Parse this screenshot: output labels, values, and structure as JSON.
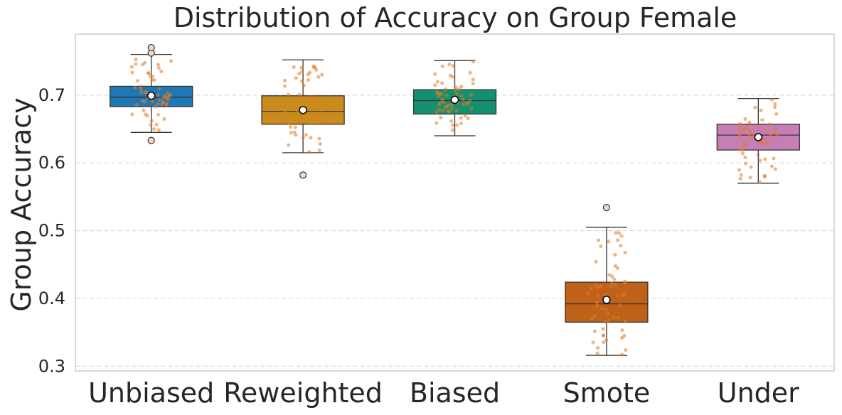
{
  "chart_data": {
    "type": "box",
    "title": "Distribution of Accuracy on Group Female",
    "xlabel": "",
    "ylabel": "Group Accuracy",
    "ylim": [
      0.293,
      0.79
    ],
    "yticks": [
      0.3,
      0.4,
      0.5,
      0.6,
      0.7
    ],
    "ytick_labels": [
      "0.3",
      "0.4",
      "0.5",
      "0.6",
      "0.7"
    ],
    "grid": true,
    "jitter_color": "#e07b28",
    "categories": [
      "Unbiased",
      "Reweighted",
      "Biased",
      "Smote",
      "Under"
    ],
    "series": [
      {
        "name": "Unbiased",
        "color": "#1f78b4",
        "whislo": 0.645,
        "q1": 0.683,
        "median": 0.697,
        "q3": 0.713,
        "whishi": 0.76,
        "mean": 0.699,
        "fliers": [
          0.633,
          0.762,
          0.77
        ]
      },
      {
        "name": "Reweighted",
        "color": "#c98c1c",
        "whislo": 0.615,
        "q1": 0.657,
        "median": 0.676,
        "q3": 0.699,
        "whishi": 0.752,
        "mean": 0.678,
        "fliers": [
          0.582
        ]
      },
      {
        "name": "Biased",
        "color": "#14906e",
        "whislo": 0.64,
        "q1": 0.672,
        "median": 0.692,
        "q3": 0.708,
        "whishi": 0.751,
        "mean": 0.693,
        "fliers": []
      },
      {
        "name": "Smote",
        "color": "#c0611a",
        "whislo": 0.316,
        "q1": 0.365,
        "median": 0.392,
        "q3": 0.424,
        "whishi": 0.505,
        "mean": 0.398,
        "fliers": [
          0.534
        ]
      },
      {
        "name": "Under",
        "color": "#c57fb6",
        "whislo": 0.57,
        "q1": 0.619,
        "median": 0.641,
        "q3": 0.657,
        "whishi": 0.695,
        "mean": 0.638,
        "fliers": []
      }
    ]
  }
}
